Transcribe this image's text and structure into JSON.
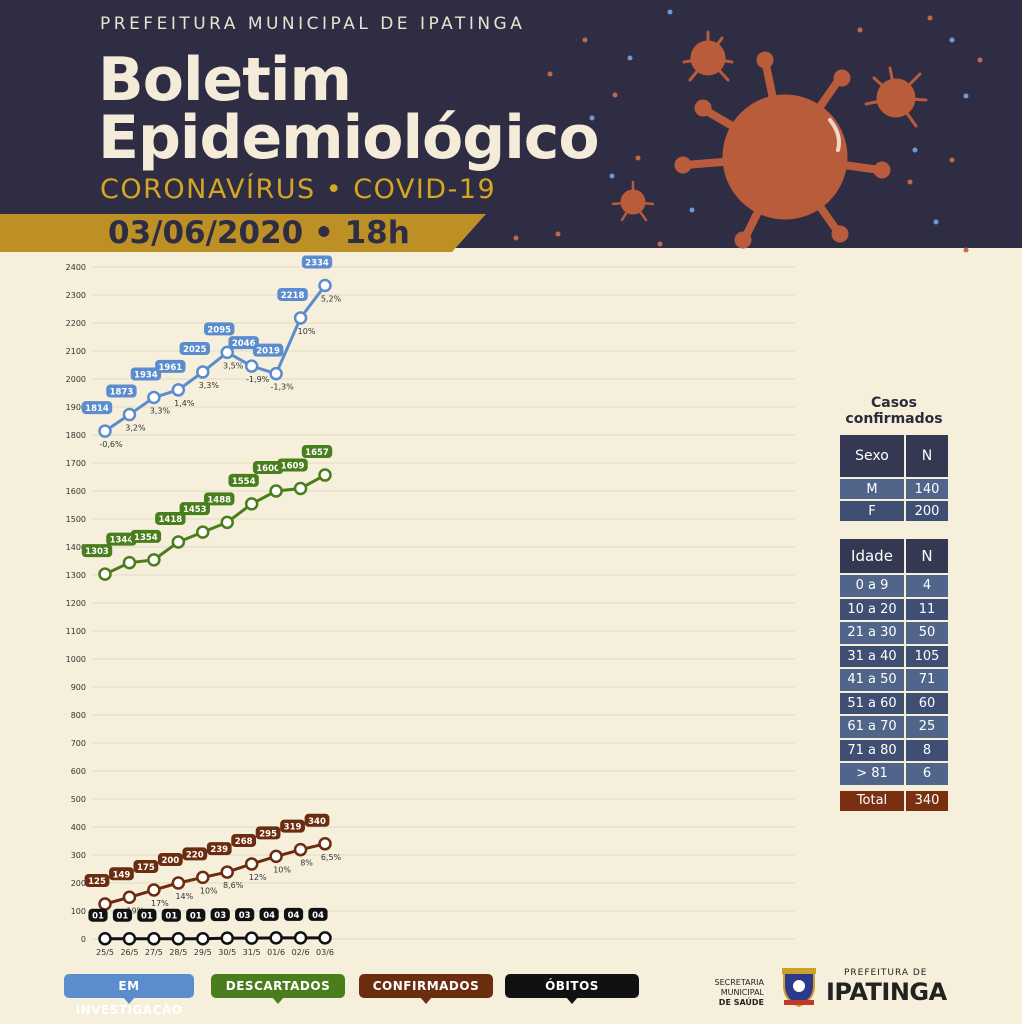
{
  "header": {
    "top_line": "PREFEITURA MUNICIPAL DE IPATINGA",
    "title_line1": "Boletim",
    "title_line2": "Epidemiológico",
    "subtitle": "CORONAVÍRUS • COVID-19",
    "date": "03/06/2020 • 18h"
  },
  "colors": {
    "header_bg": "#2e2d43",
    "background": "#f5efdc",
    "accent_gold": "#bc9024",
    "em_investigacao": "#5b8ccd",
    "descartados": "#4a7d1c",
    "confirmados": "#6b2c10",
    "obitos": "#111111",
    "virus": "#b85c3c"
  },
  "chart_data": {
    "type": "line",
    "x": [
      "25/5",
      "26/5",
      "27/5",
      "28/5",
      "29/5",
      "30/5",
      "31/5",
      "01/6",
      "02/6",
      "03/6"
    ],
    "yticks": [
      0,
      100,
      200,
      300,
      400,
      500,
      600,
      700,
      800,
      900,
      1000,
      1100,
      1200,
      1300,
      1400,
      1500,
      1600,
      1700,
      1800,
      1900,
      2000,
      2100,
      2200,
      2300,
      2400
    ],
    "ylim": [
      0,
      2400
    ],
    "grid": true,
    "legend_position": "bottom",
    "series": [
      {
        "name": "EM INVESTIGAÇÃO",
        "color": "#5b8ccd",
        "values": [
          1814,
          1873,
          1934,
          1961,
          2025,
          2095,
          2046,
          2019,
          2218,
          2334
        ],
        "labels": [
          "1814",
          "1873",
          "1934",
          "1961",
          "2025",
          "2095",
          "2046",
          "2019",
          "2218",
          "2334"
        ],
        "pct": [
          "-0,6%",
          "3,2%",
          "3,3%",
          "1,4%",
          "3,3%",
          "3,5%",
          "-1,9%",
          "-1,3%",
          "10%",
          "5,2%"
        ]
      },
      {
        "name": "DESCARTADOS",
        "color": "#4a7d1c",
        "values": [
          1303,
          1344,
          1354,
          1418,
          1453,
          1488,
          1554,
          1600,
          1609,
          1657
        ],
        "labels": [
          "1303",
          "1344",
          "1354",
          "1418",
          "1453",
          "1488",
          "1554",
          "1600",
          "1609",
          "1657"
        ],
        "pct": []
      },
      {
        "name": "CONFIRMADOS",
        "color": "#6b2c10",
        "values": [
          125,
          149,
          175,
          200,
          220,
          239,
          268,
          295,
          319,
          340
        ],
        "labels": [
          "125",
          "149",
          "175",
          "200",
          "220",
          "239",
          "268",
          "295",
          "319",
          "340"
        ],
        "pct": [
          "",
          "19%",
          "17%",
          "14%",
          "10%",
          "8,6%",
          "12%",
          "10%",
          "8%",
          "6,5%"
        ]
      },
      {
        "name": "ÓBITOS",
        "color": "#111111",
        "values": [
          1,
          1,
          1,
          1,
          1,
          3,
          3,
          4,
          4,
          4
        ],
        "labels": [
          "01",
          "01",
          "01",
          "01",
          "01",
          "03",
          "03",
          "04",
          "04",
          "04"
        ],
        "pct": []
      }
    ]
  },
  "legend": {
    "em_investigacao": "EM INVESTIGAÇÃO",
    "descartados": "DESCARTADOS",
    "confirmados": "CONFIRMADOS",
    "obitos": "ÓBITOS"
  },
  "casos": {
    "title_line1": "Casos",
    "title_line2": "confirmados",
    "sexo": {
      "headers": [
        "Sexo",
        "N"
      ],
      "rows": [
        [
          "M",
          "140"
        ],
        [
          "F",
          "200"
        ]
      ]
    },
    "idade": {
      "headers": [
        "Idade",
        "N"
      ],
      "rows": [
        [
          "0 a 9",
          "4"
        ],
        [
          "10 a 20",
          "11"
        ],
        [
          "21 a 30",
          "50"
        ],
        [
          "31 a 40",
          "105"
        ],
        [
          "41 a 50",
          "71"
        ],
        [
          "51 a 60",
          "60"
        ],
        [
          "61 a 70",
          "25"
        ],
        [
          "71 a 80",
          "8"
        ],
        [
          "> 81",
          "6"
        ]
      ],
      "total_label": "Total",
      "total_value": "340"
    }
  },
  "footer": {
    "secretaria_line1": "SECRETARIA MUNICIPAL",
    "secretaria_line2": "DE SAÚDE",
    "prefeitura_small": "PREFEITURA DE",
    "prefeitura_big": "IPATINGA"
  }
}
